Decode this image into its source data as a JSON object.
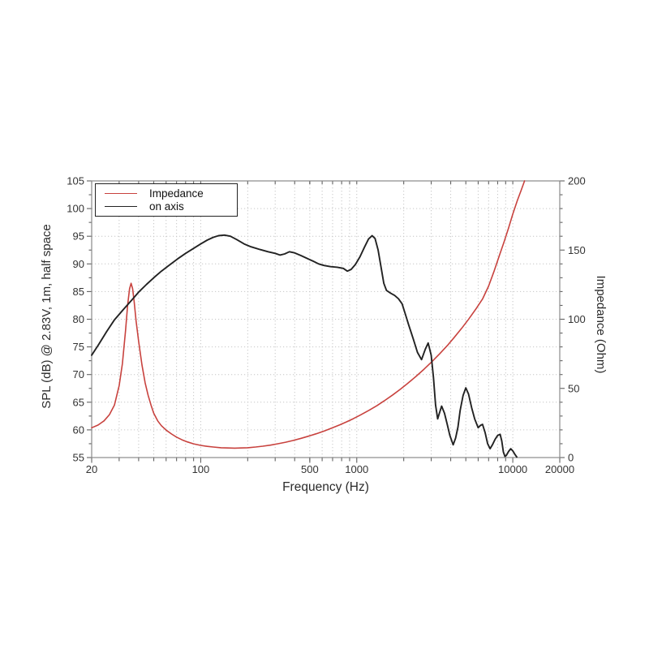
{
  "chart_data": {
    "type": "line",
    "title": "",
    "xlabel": "Frequency (Hz)",
    "ylabel_left": "SPL (dB) @ 2.83V, 1m, half space",
    "ylabel_right": "Impedance (Ohm)",
    "x_scale": "log",
    "x_range": [
      20,
      20000
    ],
    "x_ticks_labeled": [
      20,
      100,
      500,
      1000,
      10000,
      20000
    ],
    "x_tick_label_texts": [
      "20",
      "100",
      "500",
      "1000",
      "10000",
      "20000"
    ],
    "y_left_range": [
      55,
      105
    ],
    "y_left_ticks": [
      55,
      60,
      65,
      70,
      75,
      80,
      85,
      90,
      95,
      100,
      105
    ],
    "y_right_range": [
      0,
      200
    ],
    "y_right_ticks": [
      0,
      50,
      100,
      150,
      200
    ],
    "grid": true,
    "legend_position": "upper left",
    "colors": {
      "grid": "#c6c6c6",
      "spine": "#8a8a8a",
      "tick": "#606060",
      "tick_label": "#333333"
    },
    "series": [
      {
        "name": "Impedance",
        "axis": "right",
        "unit": "Ohm",
        "color": "#c8423e",
        "points": [
          [
            20,
            21.5
          ],
          [
            22,
            23.5
          ],
          [
            24,
            26.5
          ],
          [
            26,
            31
          ],
          [
            28,
            38
          ],
          [
            30,
            52
          ],
          [
            31.5,
            68
          ],
          [
            33,
            92
          ],
          [
            34,
            110
          ],
          [
            35,
            122
          ],
          [
            35.8,
            126
          ],
          [
            36.6,
            122
          ],
          [
            37.5,
            112
          ],
          [
            38.5,
            99
          ],
          [
            40,
            84
          ],
          [
            42,
            67
          ],
          [
            44,
            54
          ],
          [
            46,
            45
          ],
          [
            48,
            38
          ],
          [
            50,
            32
          ],
          [
            53,
            26.5
          ],
          [
            56,
            23
          ],
          [
            60,
            19.8
          ],
          [
            65,
            17
          ],
          [
            70,
            14.8
          ],
          [
            76,
            12.8
          ],
          [
            82,
            11.3
          ],
          [
            90,
            9.9
          ],
          [
            100,
            8.8
          ],
          [
            110,
            8.1
          ],
          [
            120,
            7.6
          ],
          [
            135,
            7.1
          ],
          [
            150,
            6.9
          ],
          [
            165,
            6.8
          ],
          [
            180,
            6.9
          ],
          [
            200,
            7.1
          ],
          [
            225,
            7.6
          ],
          [
            250,
            8.2
          ],
          [
            280,
            9.0
          ],
          [
            310,
            9.9
          ],
          [
            350,
            11.1
          ],
          [
            390,
            12.3
          ],
          [
            440,
            13.9
          ],
          [
            490,
            15.4
          ],
          [
            550,
            17.2
          ],
          [
            620,
            19.2
          ],
          [
            700,
            21.5
          ],
          [
            780,
            23.7
          ],
          [
            860,
            25.8
          ],
          [
            950,
            28.1
          ],
          [
            1050,
            30.6
          ],
          [
            1200,
            34.2
          ],
          [
            1350,
            37.6
          ],
          [
            1500,
            41.0
          ],
          [
            1700,
            45.3
          ],
          [
            1900,
            49.3
          ],
          [
            2100,
            53.2
          ],
          [
            2400,
            58.7
          ],
          [
            2700,
            63.9
          ],
          [
            3000,
            68.8
          ],
          [
            3400,
            75.0
          ],
          [
            3800,
            80.9
          ],
          [
            4200,
            86.6
          ],
          [
            4700,
            93.4
          ],
          [
            5200,
            99.9
          ],
          [
            5800,
            107.4
          ],
          [
            6400,
            114.6
          ],
          [
            7000,
            124
          ],
          [
            7600,
            135
          ],
          [
            8200,
            146
          ],
          [
            8800,
            156
          ],
          [
            9400,
            166
          ],
          [
            10000,
            176
          ],
          [
            10700,
            186
          ],
          [
            11300,
            193
          ],
          [
            11900,
            200
          ]
        ]
      },
      {
        "name": "on axis",
        "axis": "left",
        "unit": "dB SPL",
        "color": "#222222",
        "points": [
          [
            20,
            73.5
          ],
          [
            22,
            75.3
          ],
          [
            25,
            77.8
          ],
          [
            28,
            79.9
          ],
          [
            32,
            81.8
          ],
          [
            36,
            83.4
          ],
          [
            40,
            84.9
          ],
          [
            45,
            86.3
          ],
          [
            50,
            87.5
          ],
          [
            56,
            88.7
          ],
          [
            63,
            89.8
          ],
          [
            71,
            90.9
          ],
          [
            80,
            91.9
          ],
          [
            90,
            92.8
          ],
          [
            100,
            93.6
          ],
          [
            110,
            94.3
          ],
          [
            120,
            94.8
          ],
          [
            130,
            95.1
          ],
          [
            142,
            95.2
          ],
          [
            155,
            95.0
          ],
          [
            170,
            94.4
          ],
          [
            190,
            93.6
          ],
          [
            210,
            93.1
          ],
          [
            240,
            92.6
          ],
          [
            270,
            92.2
          ],
          [
            300,
            91.9
          ],
          [
            322,
            91.6
          ],
          [
            345,
            91.8
          ],
          [
            370,
            92.2
          ],
          [
            400,
            92.0
          ],
          [
            440,
            91.5
          ],
          [
            480,
            91.0
          ],
          [
            525,
            90.5
          ],
          [
            570,
            90.0
          ],
          [
            620,
            89.7
          ],
          [
            680,
            89.5
          ],
          [
            750,
            89.4
          ],
          [
            820,
            89.2
          ],
          [
            870,
            88.7
          ],
          [
            920,
            89.0
          ],
          [
            980,
            89.9
          ],
          [
            1050,
            91.3
          ],
          [
            1120,
            93.0
          ],
          [
            1190,
            94.5
          ],
          [
            1255,
            95.1
          ],
          [
            1310,
            94.6
          ],
          [
            1370,
            92.5
          ],
          [
            1430,
            89.5
          ],
          [
            1490,
            86.5
          ],
          [
            1550,
            85.2
          ],
          [
            1650,
            84.7
          ],
          [
            1750,
            84.3
          ],
          [
            1850,
            83.7
          ],
          [
            1950,
            82.8
          ],
          [
            2050,
            80.9
          ],
          [
            2150,
            79.0
          ],
          [
            2300,
            76.5
          ],
          [
            2450,
            74.0
          ],
          [
            2600,
            72.7
          ],
          [
            2750,
            74.6
          ],
          [
            2870,
            75.7
          ],
          [
            3000,
            73.5
          ],
          [
            3100,
            69.5
          ],
          [
            3200,
            64.5
          ],
          [
            3300,
            62.0
          ],
          [
            3400,
            63.2
          ],
          [
            3500,
            64.3
          ],
          [
            3650,
            63.0
          ],
          [
            3800,
            61.0
          ],
          [
            3950,
            59.0
          ],
          [
            4150,
            57.3
          ],
          [
            4300,
            58.5
          ],
          [
            4450,
            60.5
          ],
          [
            4600,
            63.5
          ],
          [
            4800,
            66.2
          ],
          [
            5000,
            67.6
          ],
          [
            5200,
            66.5
          ],
          [
            5450,
            64.0
          ],
          [
            5700,
            62.0
          ],
          [
            6000,
            60.4
          ],
          [
            6200,
            60.8
          ],
          [
            6400,
            61.0
          ],
          [
            6650,
            59.5
          ],
          [
            6900,
            57.5
          ],
          [
            7150,
            56.6
          ],
          [
            7400,
            57.3
          ],
          [
            7700,
            58.3
          ],
          [
            8000,
            59.0
          ],
          [
            8300,
            59.2
          ],
          [
            8500,
            58.0
          ],
          [
            8700,
            56.0
          ],
          [
            8900,
            55.2
          ],
          [
            9100,
            55.4
          ],
          [
            9400,
            56.1
          ],
          [
            9700,
            56.6
          ],
          [
            10000,
            56.2
          ],
          [
            10300,
            55.6
          ],
          [
            10600,
            55.1
          ]
        ]
      }
    ]
  }
}
